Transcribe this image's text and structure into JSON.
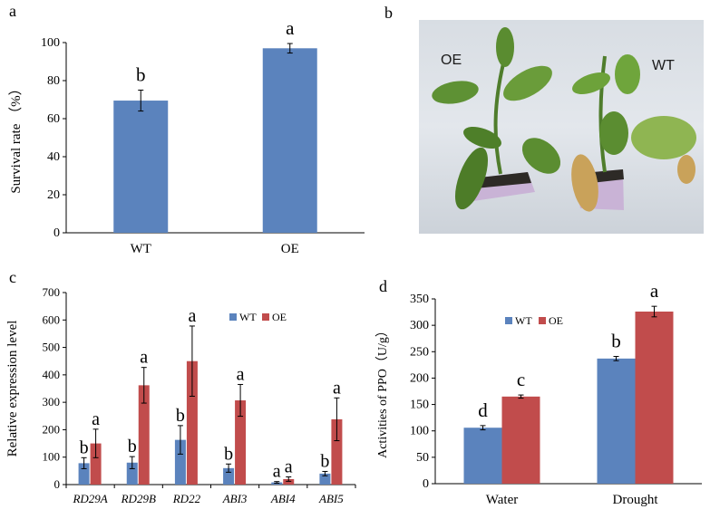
{
  "figure": {
    "panels": {
      "a": {
        "letter": "a"
      },
      "b": {
        "letter": "b",
        "plant_labels": [
          "OE",
          "WT"
        ]
      },
      "c": {
        "letter": "c"
      },
      "d": {
        "letter": "d"
      }
    }
  },
  "colors": {
    "wt": "#5b83bd",
    "oe": "#c14c4c",
    "axis": "#000000",
    "error": "#000000"
  },
  "chart_data": [
    {
      "id": "a",
      "type": "bar",
      "title": "",
      "xlabel": "",
      "ylabel": "Survival rate （%）",
      "categories": [
        "WT",
        "OE"
      ],
      "values": [
        69.5,
        97
      ],
      "errors": [
        5.5,
        2.5
      ],
      "significance": [
        "b",
        "a"
      ],
      "ylim": [
        0,
        100
      ],
      "yticks": [
        "0",
        "20",
        "40",
        "60",
        "80",
        "100"
      ],
      "grid": false,
      "legend": "none"
    },
    {
      "id": "c",
      "type": "bar",
      "title": "",
      "xlabel": "",
      "ylabel": "Relative expression level",
      "categories": [
        "RD29A",
        "RD29B",
        "RD22",
        "ABI3",
        "ABI4",
        "ABI5"
      ],
      "series": [
        {
          "name": "WT",
          "values": [
            78,
            80,
            163,
            60,
            8,
            40
          ],
          "errors": [
            20,
            22,
            52,
            15,
            3,
            8
          ],
          "significance": [
            "b",
            "b",
            "b",
            "b",
            "a",
            "b"
          ]
        },
        {
          "name": "OE",
          "values": [
            150,
            362,
            450,
            307,
            20,
            238
          ],
          "errors": [
            52,
            65,
            128,
            58,
            8,
            78
          ],
          "significance": [
            "a",
            "a",
            "a",
            "a",
            "a",
            "a"
          ]
        }
      ],
      "ylim": [
        0,
        700
      ],
      "yticks": [
        "0",
        "100",
        "200",
        "300",
        "400",
        "500",
        "600",
        "700"
      ],
      "grid": false,
      "legend": "top-right"
    },
    {
      "id": "d",
      "type": "bar",
      "title": "",
      "xlabel": "",
      "ylabel": "Activities of PPO（U/g）",
      "categories": [
        "Water",
        "Drought"
      ],
      "series": [
        {
          "name": "WT",
          "values": [
            106,
            237
          ],
          "errors": [
            4,
            4
          ],
          "significance": [
            "d",
            "b"
          ]
        },
        {
          "name": "OE",
          "values": [
            165,
            326
          ],
          "errors": [
            3,
            10
          ],
          "significance": [
            "c",
            "a"
          ]
        }
      ],
      "ylim": [
        0,
        350
      ],
      "yticks": [
        "0",
        "50",
        "100",
        "150",
        "200",
        "250",
        "300",
        "350"
      ],
      "grid": false,
      "legend": "top-center"
    }
  ]
}
